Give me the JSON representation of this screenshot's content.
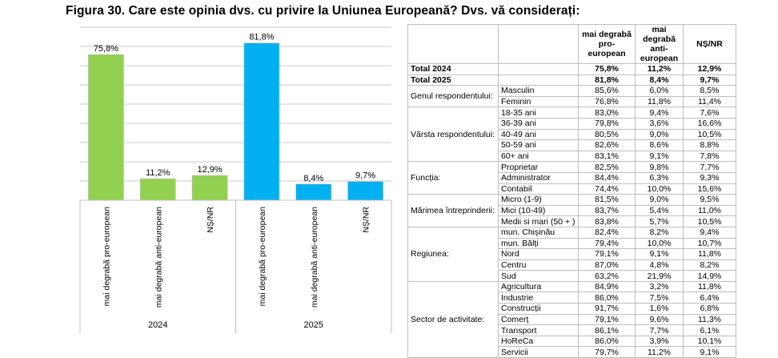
{
  "figure_title": "Figura  30. Care este opinia dvs. cu privire la Uniunea Europeană? Dvs. vă considerați:",
  "chart_data": {
    "type": "bar",
    "title": "Figura  30. Care este opinia dvs. cu privire la Uniunea Europeană? Dvs. vă considerați:",
    "xlabel": "",
    "ylabel": "",
    "ylim": [
      0,
      90
    ],
    "ytick_step": 10,
    "grid": true,
    "legend": "none",
    "groups": [
      {
        "name": "2024",
        "color": "#92D050",
        "categories": [
          "mai degrabă pro-european",
          "mai degrabă anti-european",
          "NȘ/NR"
        ],
        "values": [
          75.8,
          11.2,
          12.9
        ],
        "labels": [
          "75,8%",
          "11,2%",
          "12,9%"
        ]
      },
      {
        "name": "2025",
        "color": "#00B0F0",
        "categories": [
          "mai degrabă pro-european",
          "mai degrabă anti-european",
          "NȘ/NR"
        ],
        "values": [
          81.8,
          8.4,
          9.7
        ],
        "labels": [
          "81,8%",
          "8,4%",
          "9,7%"
        ]
      }
    ]
  },
  "table": {
    "headers": [
      "",
      "",
      "mai degrabă pro-european",
      "mai degrabă anti-european",
      "NȘ/NR"
    ],
    "totals": [
      {
        "label": "Total 2024",
        "values": [
          "75,8%",
          "11,2%",
          "12,9%"
        ]
      },
      {
        "label": "Total 2025",
        "values": [
          "81,8%",
          "8,4%",
          "9,7%"
        ]
      }
    ],
    "groups": [
      {
        "label": "Genul respondentului:",
        "rows": [
          {
            "label": "Masculin",
            "values": [
              "85,6%",
              "6,0%",
              "8,5%"
            ]
          },
          {
            "label": "Feminin",
            "values": [
              "76,8%",
              "11,8%",
              "11,4%"
            ]
          }
        ]
      },
      {
        "label": "Vârsta respondentului:",
        "rows": [
          {
            "label": "18-35 ani",
            "values": [
              "83,0%",
              "9,4%",
              "7,6%"
            ]
          },
          {
            "label": "36-39 ani",
            "values": [
              "79,8%",
              "3,6%",
              "16,6%"
            ]
          },
          {
            "label": "40-49 ani",
            "values": [
              "80,5%",
              "9,0%",
              "10,5%"
            ]
          },
          {
            "label": "50-59 ani",
            "values": [
              "82,6%",
              "8,6%",
              "8,8%"
            ]
          },
          {
            "label": "60+ ani",
            "values": [
              "83,1%",
              "9,1%",
              "7,8%"
            ]
          }
        ]
      },
      {
        "label": "Funcția:",
        "rows": [
          {
            "label": "Proprietar",
            "values": [
              "82,5%",
              "9,8%",
              "7,7%"
            ]
          },
          {
            "label": "Administrator",
            "values": [
              "84,4%",
              "6,3%",
              "9,3%"
            ]
          },
          {
            "label": "Contabil",
            "values": [
              "74,4%",
              "10,0%",
              "15,6%"
            ]
          }
        ]
      },
      {
        "label": "Mărimea întreprinderii:",
        "rows": [
          {
            "label": "Micro (1-9)",
            "values": [
              "81,5%",
              "9,0%",
              "9,5%"
            ]
          },
          {
            "label": "Mici (10-49)",
            "values": [
              "83,7%",
              "5,4%",
              "11,0%"
            ]
          },
          {
            "label": "Medii si mari (50 + )",
            "values": [
              "83,8%",
              "5,7%",
              "10,5%"
            ]
          }
        ]
      },
      {
        "label": "Regiunea:",
        "rows": [
          {
            "label": "mun. Chișinău",
            "values": [
              "82,4%",
              "8,2%",
              "9,4%"
            ]
          },
          {
            "label": "mun. Bălți",
            "values": [
              "79,4%",
              "10,0%",
              "10,7%"
            ]
          },
          {
            "label": "Nord",
            "values": [
              "79,1%",
              "9,1%",
              "11,8%"
            ]
          },
          {
            "label": "Centru",
            "values": [
              "87,0%",
              "4,8%",
              "8,2%"
            ]
          },
          {
            "label": "Sud",
            "values": [
              "63,2%",
              "21,9%",
              "14,9%"
            ]
          }
        ]
      },
      {
        "label": "Sector de activitate:",
        "rows": [
          {
            "label": "Agricultura",
            "values": [
              "84,9%",
              "3,2%",
              "11,8%"
            ]
          },
          {
            "label": "Industrie",
            "values": [
              "86,0%",
              "7,5%",
              "6,4%"
            ]
          },
          {
            "label": "Construcții",
            "values": [
              "91,7%",
              "1,6%",
              "6,8%"
            ]
          },
          {
            "label": "Comerț",
            "values": [
              "79,1%",
              "9,6%",
              "11,3%"
            ]
          },
          {
            "label": "Transport",
            "values": [
              "86,1%",
              "7,7%",
              "6,1%"
            ]
          },
          {
            "label": "HoReCa",
            "values": [
              "86,0%",
              "3,9%",
              "10,1%"
            ]
          },
          {
            "label": "Servicii",
            "values": [
              "79,7%",
              "11,2%",
              "9,1%"
            ]
          }
        ]
      }
    ]
  }
}
